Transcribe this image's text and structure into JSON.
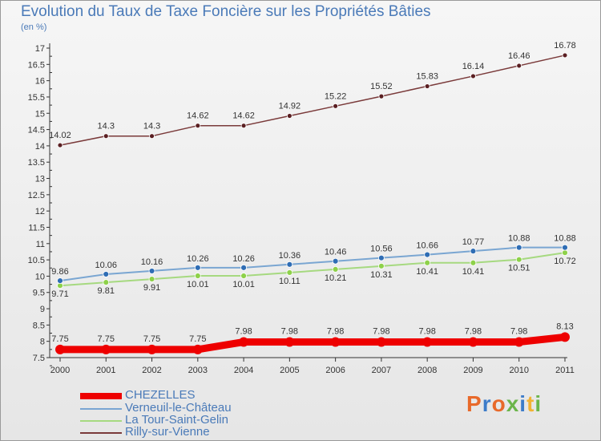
{
  "title": "Evolution du Taux de Taxe Foncière sur les Propriétés Bâties",
  "subtitle": "(en %)",
  "brand": {
    "text": "Proxiti",
    "colors": [
      "#e8692a",
      "#3d7cc9",
      "#e8692a",
      "#6bb54a",
      "#3d7cc9",
      "#f2b233",
      "#6bb54a"
    ]
  },
  "chart_data": {
    "type": "line",
    "title": "Evolution du Taux de Taxe Foncière sur les Propriétés Bâties",
    "ylabel": "(en %)",
    "xlabel": "",
    "x": [
      "2000",
      "2001",
      "2002",
      "2003",
      "2004",
      "2005",
      "2006",
      "2007",
      "2008",
      "2009",
      "2010",
      "2011"
    ],
    "ylim": [
      7.5,
      17
    ],
    "yticks": [
      "7.5",
      "8",
      "8.5",
      "9",
      "9.5",
      "10",
      "10.5",
      "11",
      "11.5",
      "12",
      "12.5",
      "13",
      "13.5",
      "14",
      "14.5",
      "15",
      "15.5",
      "16",
      "16.5",
      "17"
    ],
    "grid": false,
    "legend_position": "bottom-left",
    "series": [
      {
        "name": "CHEZELLES",
        "color": "#ee0000",
        "values": [
          7.75,
          7.75,
          7.75,
          7.75,
          7.98,
          7.98,
          7.98,
          7.98,
          7.98,
          7.98,
          7.98,
          8.13
        ],
        "labels": [
          "7.75",
          "7.75",
          "7.75",
          "7.75",
          "7.98",
          "7.98",
          "7.98",
          "7.98",
          "7.98",
          "7.98",
          "7.98",
          "8.13"
        ]
      },
      {
        "name": "Verneuil-le-Château",
        "color": "#7aa6d2",
        "marker": "#2f6db4",
        "values": [
          9.86,
          10.06,
          10.16,
          10.26,
          10.26,
          10.36,
          10.46,
          10.56,
          10.66,
          10.77,
          10.88,
          10.88
        ],
        "labels": [
          "9.86",
          "10.06",
          "10.16",
          "10.26",
          "10.26",
          "10.36",
          "10.46",
          "10.56",
          "10.66",
          "10.77",
          "10.88",
          "10.88"
        ]
      },
      {
        "name": "La Tour-Saint-Gelin",
        "color": "#a6d980",
        "marker": "#8ed14a",
        "values": [
          9.71,
          9.81,
          9.91,
          10.01,
          10.01,
          10.11,
          10.21,
          10.31,
          10.41,
          10.41,
          10.51,
          10.72
        ],
        "labels": [
          "9.71",
          "9.81",
          "9.91",
          "10.01",
          "10.01",
          "10.11",
          "10.21",
          "10.31",
          "10.41",
          "10.41",
          "10.51",
          "10.72"
        ]
      },
      {
        "name": "Rilly-sur-Vienne",
        "color": "#7a3a3a",
        "marker": "#5a1f22",
        "values": [
          14.02,
          14.3,
          14.3,
          14.62,
          14.62,
          14.92,
          15.22,
          15.52,
          15.83,
          16.14,
          16.46,
          16.78
        ],
        "labels": [
          "14.02",
          "14.3",
          "14.3",
          "14.62",
          "14.62",
          "14.92",
          "15.22",
          "15.52",
          "15.83",
          "16.14",
          "16.46",
          "16.78"
        ]
      }
    ]
  }
}
